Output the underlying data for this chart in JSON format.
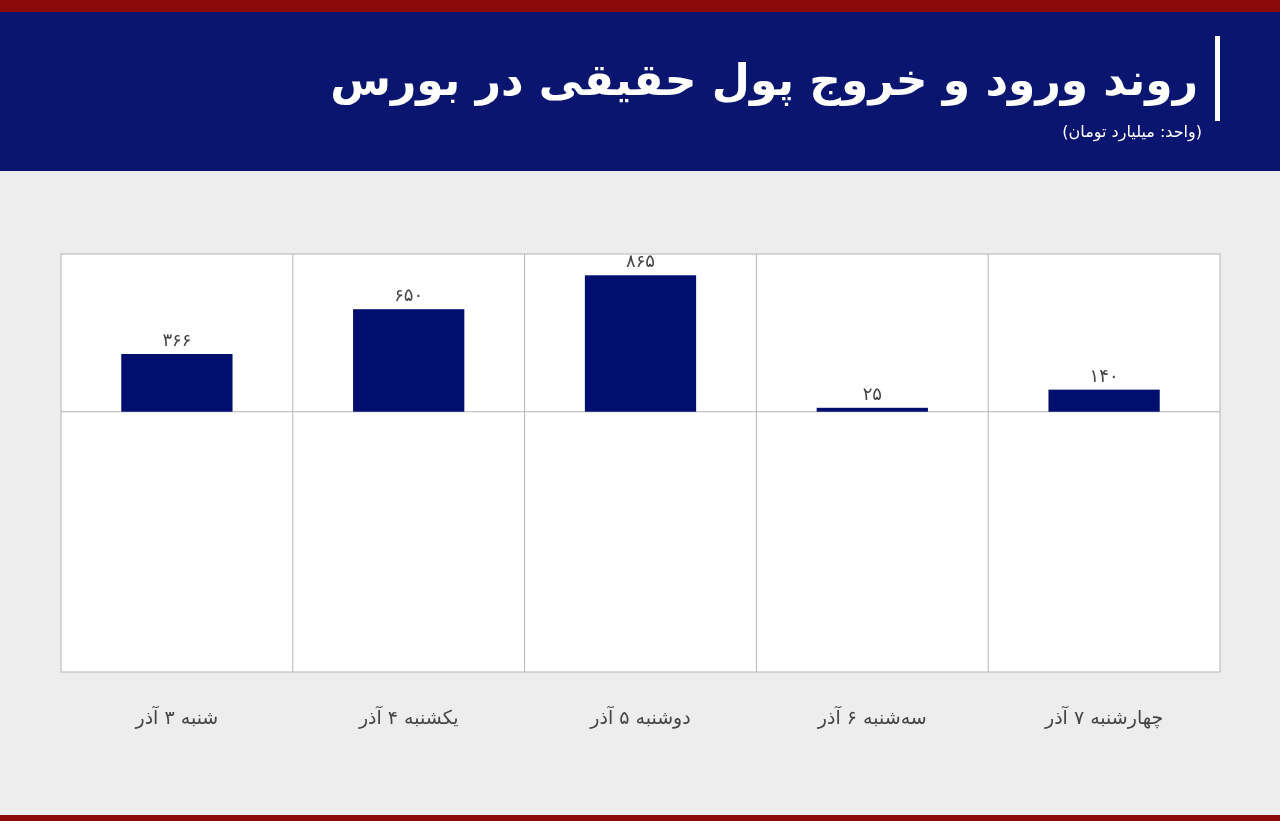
{
  "chart_data": {
    "type": "bar",
    "title": "روند ورود و خروج پول حقیقی در بورس",
    "subtitle": "(واحد: میلیارد تومان)",
    "categories": [
      "شنبه ۳ آذر",
      "یکشنبه ۴ آذر",
      "دوشنبه ۵ آذر",
      "سه‌شنبه ۶ آذر",
      "چهارشنبه ۷ آذر"
    ],
    "values": [
      366,
      650,
      865,
      25,
      140
    ],
    "value_labels": [
      "۳۶۶",
      "۶۵۰",
      "۸۶۵",
      "۲۵",
      "۱۴۰"
    ],
    "color": "#000f6e",
    "ylim": [
      -1650,
      1000
    ],
    "grid": "x"
  }
}
